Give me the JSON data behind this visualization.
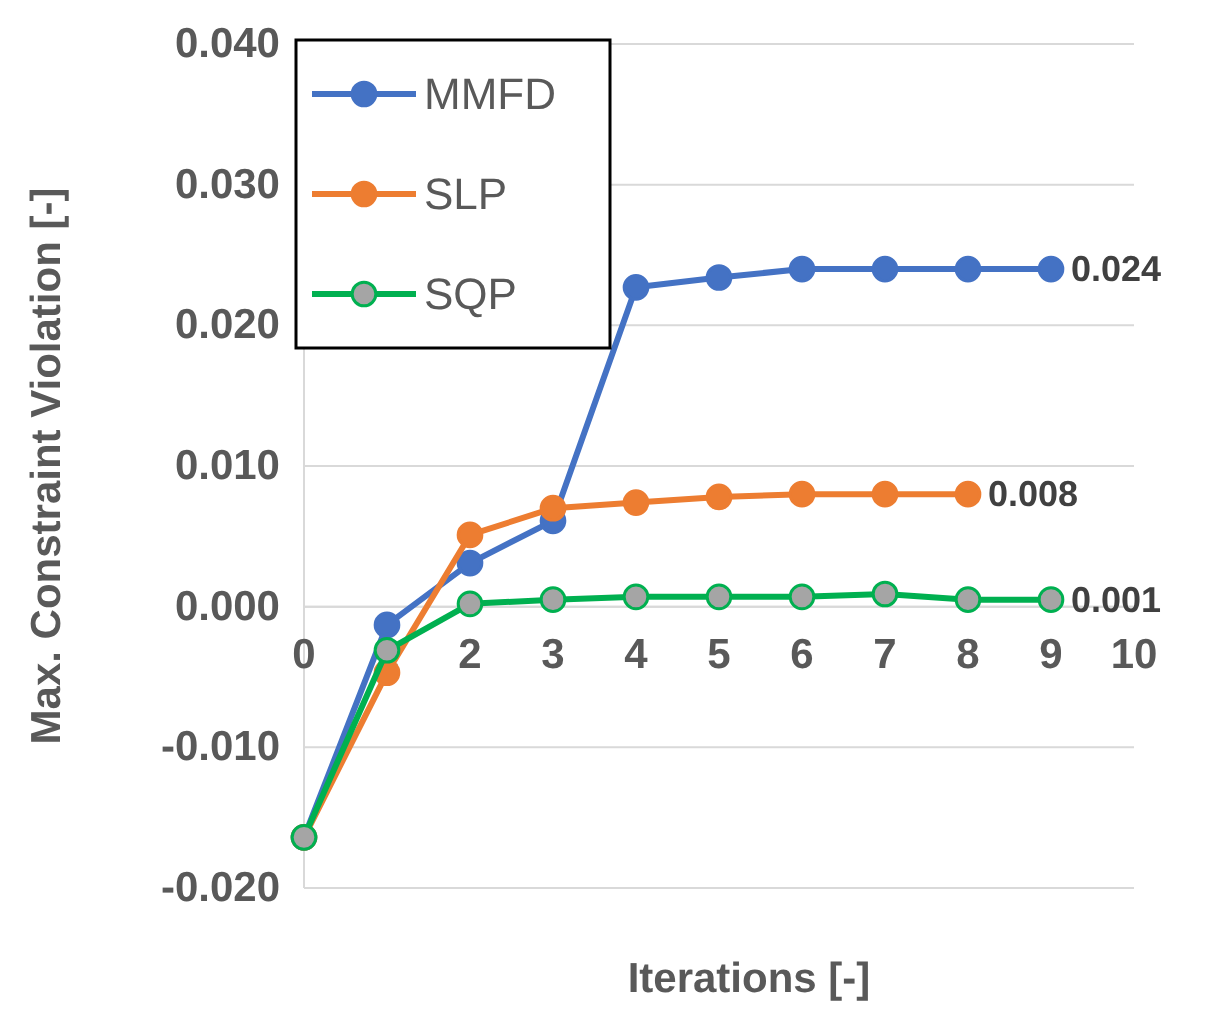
{
  "chart_data": {
    "type": "line",
    "xlabel": "Iterations [-]",
    "ylabel": "Max. Constraint Violation [-]",
    "x": [
      0,
      1,
      2,
      3,
      4,
      5,
      6,
      7,
      8,
      9
    ],
    "xlim": [
      0,
      10
    ],
    "xticks": [
      0,
      1,
      2,
      3,
      4,
      5,
      6,
      7,
      8,
      9,
      10
    ],
    "ylim": [
      -0.02,
      0.04
    ],
    "yticks": [
      {
        "value": -0.02,
        "label": "-0.020"
      },
      {
        "value": -0.01,
        "label": "-0.010"
      },
      {
        "value": 0,
        "label": "0.000"
      },
      {
        "value": 0.01,
        "label": "0.010"
      },
      {
        "value": 0.02,
        "label": "0.020"
      },
      {
        "value": 0.03,
        "label": "0.030"
      },
      {
        "value": 0.04,
        "label": "0.040"
      }
    ],
    "grid": "y",
    "legend": "top left",
    "marker": "circle",
    "line_style": "solid",
    "series": [
      {
        "name": "MMFD",
        "color": "#4472c4",
        "values": [
          -0.0164,
          -0.0013,
          0.0031,
          0.0061,
          0.0227,
          0.0234,
          0.024,
          0.024,
          0.024,
          0.024
        ],
        "value_labels": [
          null,
          null,
          null,
          null,
          null,
          null,
          null,
          null,
          null,
          "0.024"
        ]
      },
      {
        "name": "SLP",
        "color": "#ed7d31",
        "values": [
          -0.0164,
          -0.0047,
          0.0051,
          0.007,
          0.0074,
          0.0078,
          0.008,
          0.008,
          0.008,
          null
        ],
        "value_labels": [
          null,
          null,
          null,
          null,
          null,
          null,
          null,
          null,
          "0.008",
          null
        ]
      },
      {
        "name": "SQP",
        "color": "#00b050",
        "values": [
          -0.0164,
          -0.0031,
          0.0002,
          0.0005,
          0.0007,
          0.0007,
          0.0007,
          0.0009,
          0.0005,
          0.0005
        ],
        "value_labels": [
          null,
          null,
          null,
          null,
          null,
          null,
          null,
          null,
          null,
          "0.001"
        ]
      }
    ]
  }
}
